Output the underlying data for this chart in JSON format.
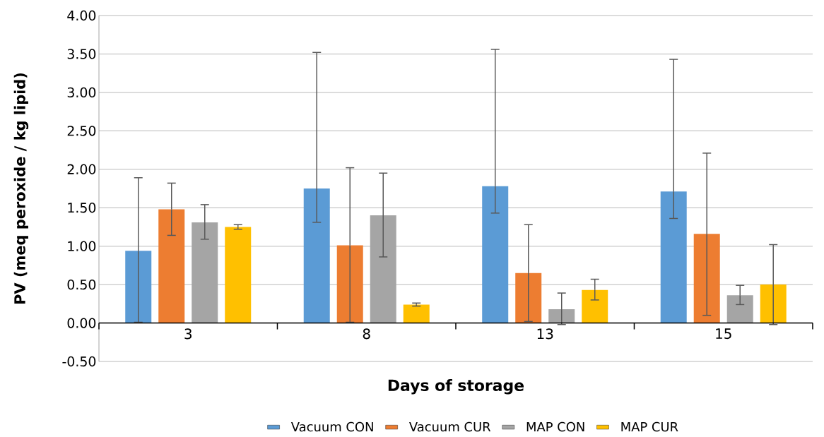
{
  "chart_data": {
    "type": "bar",
    "xlabel": "Days of storage",
    "ylabel": "PV (meq peroxide / kg lipid)",
    "categories": [
      "3",
      "8",
      "13",
      "15"
    ],
    "series": [
      {
        "name": "Vacuum CON",
        "color": "#5b9bd5",
        "values": [
          0.94,
          1.75,
          1.78,
          1.71
        ],
        "errors": [
          [
            0.01,
            1.89
          ],
          [
            1.31,
            3.52
          ],
          [
            1.43,
            3.56
          ],
          [
            1.36,
            3.43
          ]
        ]
      },
      {
        "name": "Vacuum CUR",
        "color": "#ed7d31",
        "values": [
          1.48,
          1.01,
          0.65,
          1.16
        ],
        "errors": [
          [
            1.14,
            1.82
          ],
          [
            0.01,
            2.02
          ],
          [
            0.02,
            1.28
          ],
          [
            0.1,
            2.21
          ]
        ]
      },
      {
        "name": "MAP CON",
        "color": "#a5a5a5",
        "values": [
          1.31,
          1.4,
          0.18,
          0.36
        ],
        "errors": [
          [
            1.09,
            1.54
          ],
          [
            0.86,
            1.95
          ],
          [
            -0.02,
            0.39
          ],
          [
            0.24,
            0.49
          ]
        ]
      },
      {
        "name": "MAP CUR",
        "color": "#ffc000",
        "values": [
          1.25,
          0.24,
          0.43,
          0.5
        ],
        "errors": [
          [
            1.22,
            1.28
          ],
          [
            0.22,
            0.26
          ],
          [
            0.3,
            0.57
          ],
          [
            -0.02,
            1.02
          ]
        ]
      }
    ],
    "ylim": [
      -0.5,
      4.0
    ],
    "yticks": [
      {
        "value": -0.5,
        "label": "-0.50"
      },
      {
        "value": 0,
        "label": "0.00"
      },
      {
        "value": 0.5,
        "label": "0.50"
      },
      {
        "value": 1,
        "label": "1.00"
      },
      {
        "value": 1.5,
        "label": "1.50"
      },
      {
        "value": 2,
        "label": "2.00"
      },
      {
        "value": 2.5,
        "label": "2.50"
      },
      {
        "value": 3,
        "label": "3.00"
      },
      {
        "value": 3.5,
        "label": "3.50"
      },
      {
        "value": 4,
        "label": "4.00"
      }
    ],
    "grid": "y",
    "legend": "bottom"
  }
}
